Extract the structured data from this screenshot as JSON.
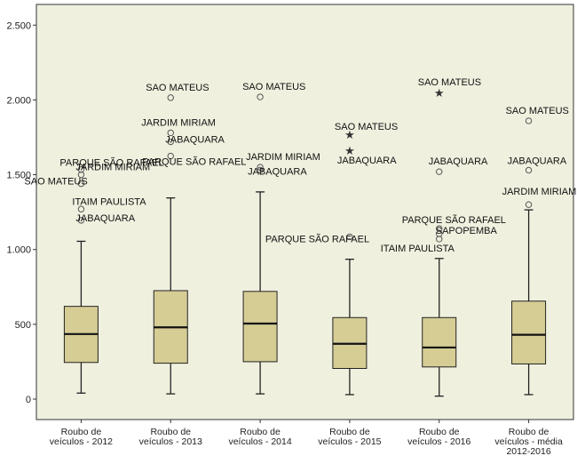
{
  "chart_data": {
    "type": "boxplot",
    "title": "",
    "xlabel": "",
    "ylabel": "",
    "ylim": [
      -120,
      2630
    ],
    "yticks": [
      0,
      500,
      1000,
      1500,
      2000,
      2500
    ],
    "ytick_labels": [
      "0",
      "500",
      "1.000",
      "1.500",
      "2.000",
      "2.500"
    ],
    "grid": false,
    "colors": {
      "plot_bg": "#f0f0df",
      "box_fill": "#d6cd95",
      "stroke": "#222222"
    },
    "categories": [
      [
        "Roubo de",
        "veículos - 2012"
      ],
      [
        "Roubo de",
        "veículos - 2013"
      ],
      [
        "Roubo de",
        "veículos - 2014"
      ],
      [
        "Roubo de",
        "veículos - 2015"
      ],
      [
        "Roubo de",
        "veículos - 2016"
      ],
      [
        "Roubo de",
        "veículos - média",
        "2012-2016"
      ]
    ],
    "boxes": [
      {
        "min": 40,
        "q1": 245,
        "median": 435,
        "q3": 620,
        "max": 1055
      },
      {
        "min": 35,
        "q1": 240,
        "median": 480,
        "q3": 725,
        "max": 1345
      },
      {
        "min": 35,
        "q1": 250,
        "median": 505,
        "q3": 720,
        "max": 1385
      },
      {
        "min": 30,
        "q1": 205,
        "median": 370,
        "q3": 545,
        "max": 935
      },
      {
        "min": 20,
        "q1": 215,
        "median": 345,
        "q3": 545,
        "max": 940
      },
      {
        "min": 30,
        "q1": 235,
        "median": 430,
        "q3": 655,
        "max": 1265
      }
    ],
    "outliers": [
      [
        {
          "value": 1535,
          "marker": "o",
          "label": "PARQUE SÃO RAFAEL"
        },
        {
          "value": 1500,
          "marker": "o",
          "label": "JARDIM MIRIAM"
        },
        {
          "value": 1440,
          "marker": "o",
          "label": "SAO MATEUS"
        },
        {
          "value": 1270,
          "marker": "o",
          "label": "ITAIM PAULISTA"
        },
        {
          "value": 1195,
          "marker": "o",
          "label": "JABAQUARA"
        }
      ],
      [
        {
          "value": 2015,
          "marker": "o",
          "label": "SAO MATEUS"
        },
        {
          "value": 1780,
          "marker": "o",
          "label": "JARDIM MIRIAM"
        },
        {
          "value": 1720,
          "marker": "o",
          "label": "JABAQUARA"
        },
        {
          "value": 1625,
          "marker": "o",
          "label": "PARQUE SÃO RAFAEL"
        }
      ],
      [
        {
          "value": 2020,
          "marker": "o",
          "label": "SAO MATEUS"
        },
        {
          "value": 1550,
          "marker": "o",
          "label": "JARDIM MIRIAM"
        },
        {
          "value": 1530,
          "marker": "o",
          "label": "JABAQUARA"
        }
      ],
      [
        {
          "value": 1770,
          "marker": "*",
          "label": "SAO MATEUS"
        },
        {
          "value": 1665,
          "marker": "*",
          "label": "JABAQUARA"
        },
        {
          "value": 1085,
          "marker": "o",
          "label": "PARQUE SÃO RAFAEL"
        }
      ],
      [
        {
          "value": 2050,
          "marker": "*",
          "label": "SAO MATEUS"
        },
        {
          "value": 1520,
          "marker": "o",
          "label": "JABAQUARA"
        },
        {
          "value": 1140,
          "marker": "o",
          "label": "PARQUE SÃO RAFAEL"
        },
        {
          "value": 1105,
          "marker": "o",
          "label": "SAPOPEMBA"
        },
        {
          "value": 1070,
          "marker": "o",
          "label": "ITAIM PAULISTA"
        }
      ],
      [
        {
          "value": 1860,
          "marker": "o",
          "label": "SAO MATEUS"
        },
        {
          "value": 1530,
          "marker": "o",
          "label": "JABAQUARA"
        },
        {
          "value": 1300,
          "marker": "o",
          "label": "JARDIM MIRIAM"
        }
      ]
    ]
  }
}
